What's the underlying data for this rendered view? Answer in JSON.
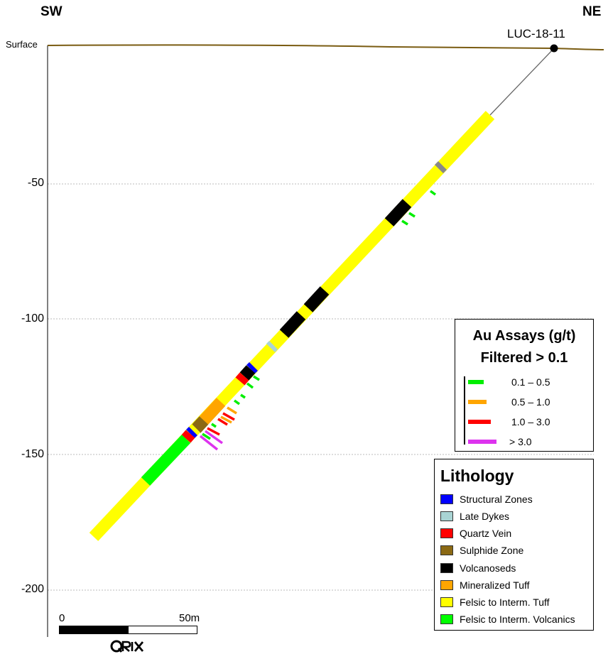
{
  "section": {
    "direction_left": "SW",
    "direction_right": "NE",
    "surface_label": "Surface",
    "hole_label": "LUC-18-11",
    "depth_labels": [
      "-50",
      "-100",
      "-150",
      "-200"
    ]
  },
  "colors": {
    "surface_line": "#7a5c12",
    "gridline": "#bbbbbb",
    "trace": "#666666",
    "structural_zones": "#0000ff",
    "late_dykes": "#a9d4d4",
    "quartz_vein": "#ff0000",
    "sulphide_zone": "#8b6914",
    "volcanoseds": "#000000",
    "mineralized_tuff": "#ffa500",
    "felsic_tuff": "#ffff00",
    "felsic_volcanics": "#00ff00",
    "assay_low": "#00ee00",
    "assay_mid": "#ffa500",
    "assay_high": "#ff0000",
    "assay_top": "#dd33ee"
  },
  "assay_legend": {
    "title_line1": "Au Assays (g/t)",
    "title_line2": "Filtered > 0.1",
    "items": [
      {
        "label": "0.1 – 0.5",
        "color": "#00ee00"
      },
      {
        "label": "0.5 – 1.0",
        "color": "#ffa500"
      },
      {
        "label": "1.0 – 3.0",
        "color": "#ff0000"
      },
      {
        "label": "> 3.0",
        "color": "#dd33ee"
      }
    ]
  },
  "lithology_legend": {
    "title": "Lithology",
    "items": [
      {
        "label": "Structural Zones",
        "color": "#0000ff"
      },
      {
        "label": "Late Dykes",
        "color": "#a9d4d4"
      },
      {
        "label": "Quartz Vein",
        "color": "#ff0000"
      },
      {
        "label": "Sulphide Zone",
        "color": "#8b6914"
      },
      {
        "label": "Volcanoseds",
        "color": "#000000"
      },
      {
        "label": "Mineralized Tuff",
        "color": "#ffa500"
      },
      {
        "label": "Felsic to Interm. Tuff",
        "color": "#ffff00"
      },
      {
        "label": "Felsic to Interm. Volcanics",
        "color": "#00ff00"
      }
    ]
  },
  "scale_bar": {
    "start_label": "0",
    "end_label": "50m"
  },
  "logo": "QRIX"
}
